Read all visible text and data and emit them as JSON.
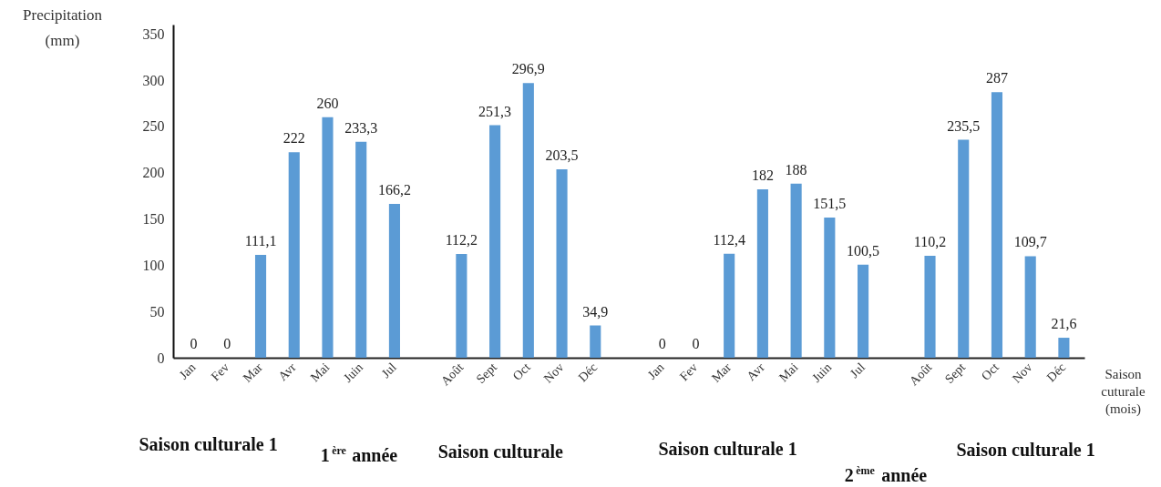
{
  "chart_data": {
    "type": "bar",
    "ylabel": "Precipitation (mm)",
    "xlabel": "Saison cuturale (mois)",
    "categories": [
      "Jan",
      "Fev",
      "Mar",
      "Avr",
      "Mai",
      "Juin",
      "Jul",
      null,
      "Août",
      "Sept",
      "Oct",
      "Nov",
      "Déc",
      null,
      "Jan",
      "Fev",
      "Mar",
      "Avr",
      "Mai",
      "Juin",
      "Jul",
      null,
      "Août",
      "Sept",
      "Oct",
      "Nov",
      "Déc"
    ],
    "values": [
      0,
      0,
      111.1,
      222,
      260,
      233.3,
      166.2,
      null,
      112.2,
      251.3,
      296.9,
      203.5,
      34.9,
      null,
      0,
      0,
      112.4,
      182,
      188,
      151.5,
      100.5,
      null,
      110.2,
      235.5,
      287,
      109.7,
      21.6
    ],
    "value_labels": [
      "0",
      "0",
      "111,1",
      "222",
      "260",
      "233,3",
      "166,2",
      null,
      "112,2",
      "251,3",
      "296,9",
      "203,5",
      "34,9",
      null,
      "0",
      "0",
      "112,4",
      "182",
      "188",
      "151,5",
      "100,5",
      null,
      "110,2",
      "235,5",
      "287",
      "109,7",
      "21,6"
    ],
    "color": "#5b9bd5",
    "ylim": [
      0,
      360
    ],
    "yticks": [
      0,
      50,
      100,
      150,
      200,
      250,
      300,
      350
    ],
    "grid": false,
    "annotations": [
      "Saison culturale 1",
      "1$^{ère}$ année",
      "Saison culturale",
      "Saison culturale 1",
      "2$^{ème}$ année",
      "Saison culturale 1"
    ]
  }
}
